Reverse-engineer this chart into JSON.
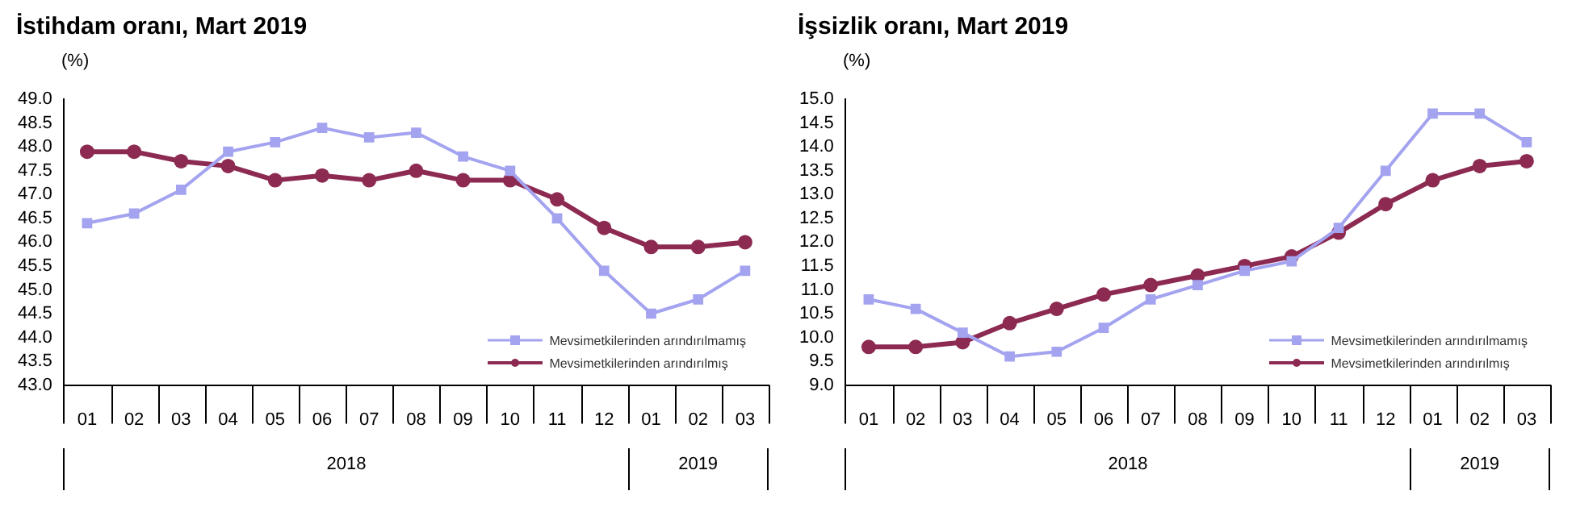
{
  "chart_data": [
    {
      "type": "line",
      "title": "İstihdam oranı, Mart 2019",
      "ylabel": "(%)",
      "categories": [
        "01",
        "02",
        "03",
        "04",
        "05",
        "06",
        "07",
        "08",
        "09",
        "10",
        "11",
        "12",
        "01",
        "02",
        "03"
      ],
      "series": [
        {
          "name": "Mevsimetkilerinden arındırılmamış",
          "color": "#a3a3f0",
          "marker": "square",
          "values": [
            46.4,
            46.6,
            47.1,
            47.9,
            48.1,
            48.4,
            48.2,
            48.3,
            47.8,
            47.5,
            46.5,
            45.4,
            44.5,
            44.8,
            45.4
          ]
        },
        {
          "name": "Mevsimetkilerinden arındırılmış",
          "color": "#8c2a52",
          "marker": "circle",
          "values": [
            47.9,
            47.9,
            47.7,
            47.6,
            47.3,
            47.4,
            47.3,
            47.5,
            47.3,
            47.3,
            46.9,
            46.3,
            45.9,
            45.9,
            46.0
          ]
        }
      ],
      "ylim": [
        43,
        49
      ],
      "yticks": [
        {
          "value": 43,
          "label": "43.0"
        },
        {
          "value": 43.5,
          "label": "43.5"
        },
        {
          "value": 44,
          "label": "44.0"
        },
        {
          "value": 44.5,
          "label": "44.5"
        },
        {
          "value": 45,
          "label": "45.0"
        },
        {
          "value": 45.5,
          "label": "45.5"
        },
        {
          "value": 46,
          "label": "46.0"
        },
        {
          "value": 46.5,
          "label": "46.5"
        },
        {
          "value": 47,
          "label": "47.0"
        },
        {
          "value": 47.5,
          "label": "47.5"
        },
        {
          "value": 48,
          "label": "48.0"
        },
        {
          "value": 48.5,
          "label": "48.5"
        },
        {
          "value": 49,
          "label": "49.0"
        }
      ],
      "annotations": [
        "2018",
        "2019"
      ],
      "legend": "bottom right",
      "grid": false
    },
    {
      "type": "line",
      "title": "İşsizlik oranı, Mart 2019",
      "ylabel": "(%)",
      "categories": [
        "01",
        "02",
        "03",
        "04",
        "05",
        "06",
        "07",
        "08",
        "09",
        "10",
        "11",
        "12",
        "01",
        "02",
        "03"
      ],
      "series": [
        {
          "name": "Mevsimetkilerinden arındırılmamış",
          "color": "#a3a3f0",
          "marker": "square",
          "values": [
            10.8,
            10.6,
            10.1,
            9.6,
            9.7,
            10.2,
            10.8,
            11.1,
            11.4,
            11.6,
            12.3,
            13.5,
            14.7,
            14.7,
            14.1
          ]
        },
        {
          "name": "Mevsimetkilerinden arındırılmış",
          "color": "#8c2a52",
          "marker": "circle",
          "values": [
            9.8,
            9.8,
            9.9,
            10.3,
            10.6,
            10.9,
            11.1,
            11.3,
            11.5,
            11.7,
            12.2,
            12.8,
            13.3,
            13.6,
            13.7
          ]
        }
      ],
      "ylim": [
        9,
        15
      ],
      "yticks": [
        {
          "value": 9,
          "label": "9.0"
        },
        {
          "value": 9.5,
          "label": "9.5"
        },
        {
          "value": 10,
          "label": "10.0"
        },
        {
          "value": 10.5,
          "label": "10.5"
        },
        {
          "value": 11,
          "label": "11.0"
        },
        {
          "value": 11.5,
          "label": "11.5"
        },
        {
          "value": 12,
          "label": "12.0"
        },
        {
          "value": 12.5,
          "label": "12.5"
        },
        {
          "value": 13,
          "label": "13.0"
        },
        {
          "value": 13.5,
          "label": "13.5"
        },
        {
          "value": 14,
          "label": "14.0"
        },
        {
          "value": 14.5,
          "label": "14.5"
        },
        {
          "value": 15,
          "label": "15.0"
        }
      ],
      "annotations": [
        "2018",
        "2019"
      ],
      "legend": "bottom right",
      "grid": false
    }
  ]
}
